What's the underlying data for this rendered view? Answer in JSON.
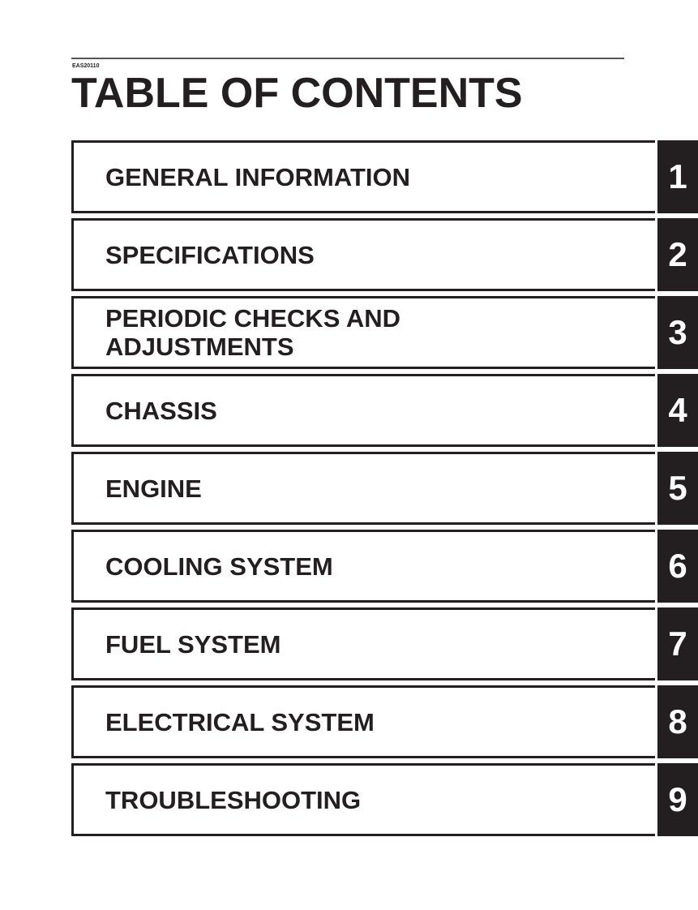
{
  "header": {
    "code": "EAS20110",
    "title": "TABLE OF CONTENTS"
  },
  "chapters": [
    {
      "label": "GENERAL INFORMATION",
      "number": "1"
    },
    {
      "label": "SPECIFICATIONS",
      "number": "2"
    },
    {
      "label": "PERIODIC CHECKS AND\nADJUSTMENTS",
      "number": "3"
    },
    {
      "label": "CHASSIS",
      "number": "4"
    },
    {
      "label": "ENGINE",
      "number": "5"
    },
    {
      "label": "COOLING SYSTEM",
      "number": "6"
    },
    {
      "label": "FUEL SYSTEM",
      "number": "7"
    },
    {
      "label": "ELECTRICAL SYSTEM",
      "number": "8"
    },
    {
      "label": "TROUBLESHOOTING",
      "number": "9"
    }
  ]
}
